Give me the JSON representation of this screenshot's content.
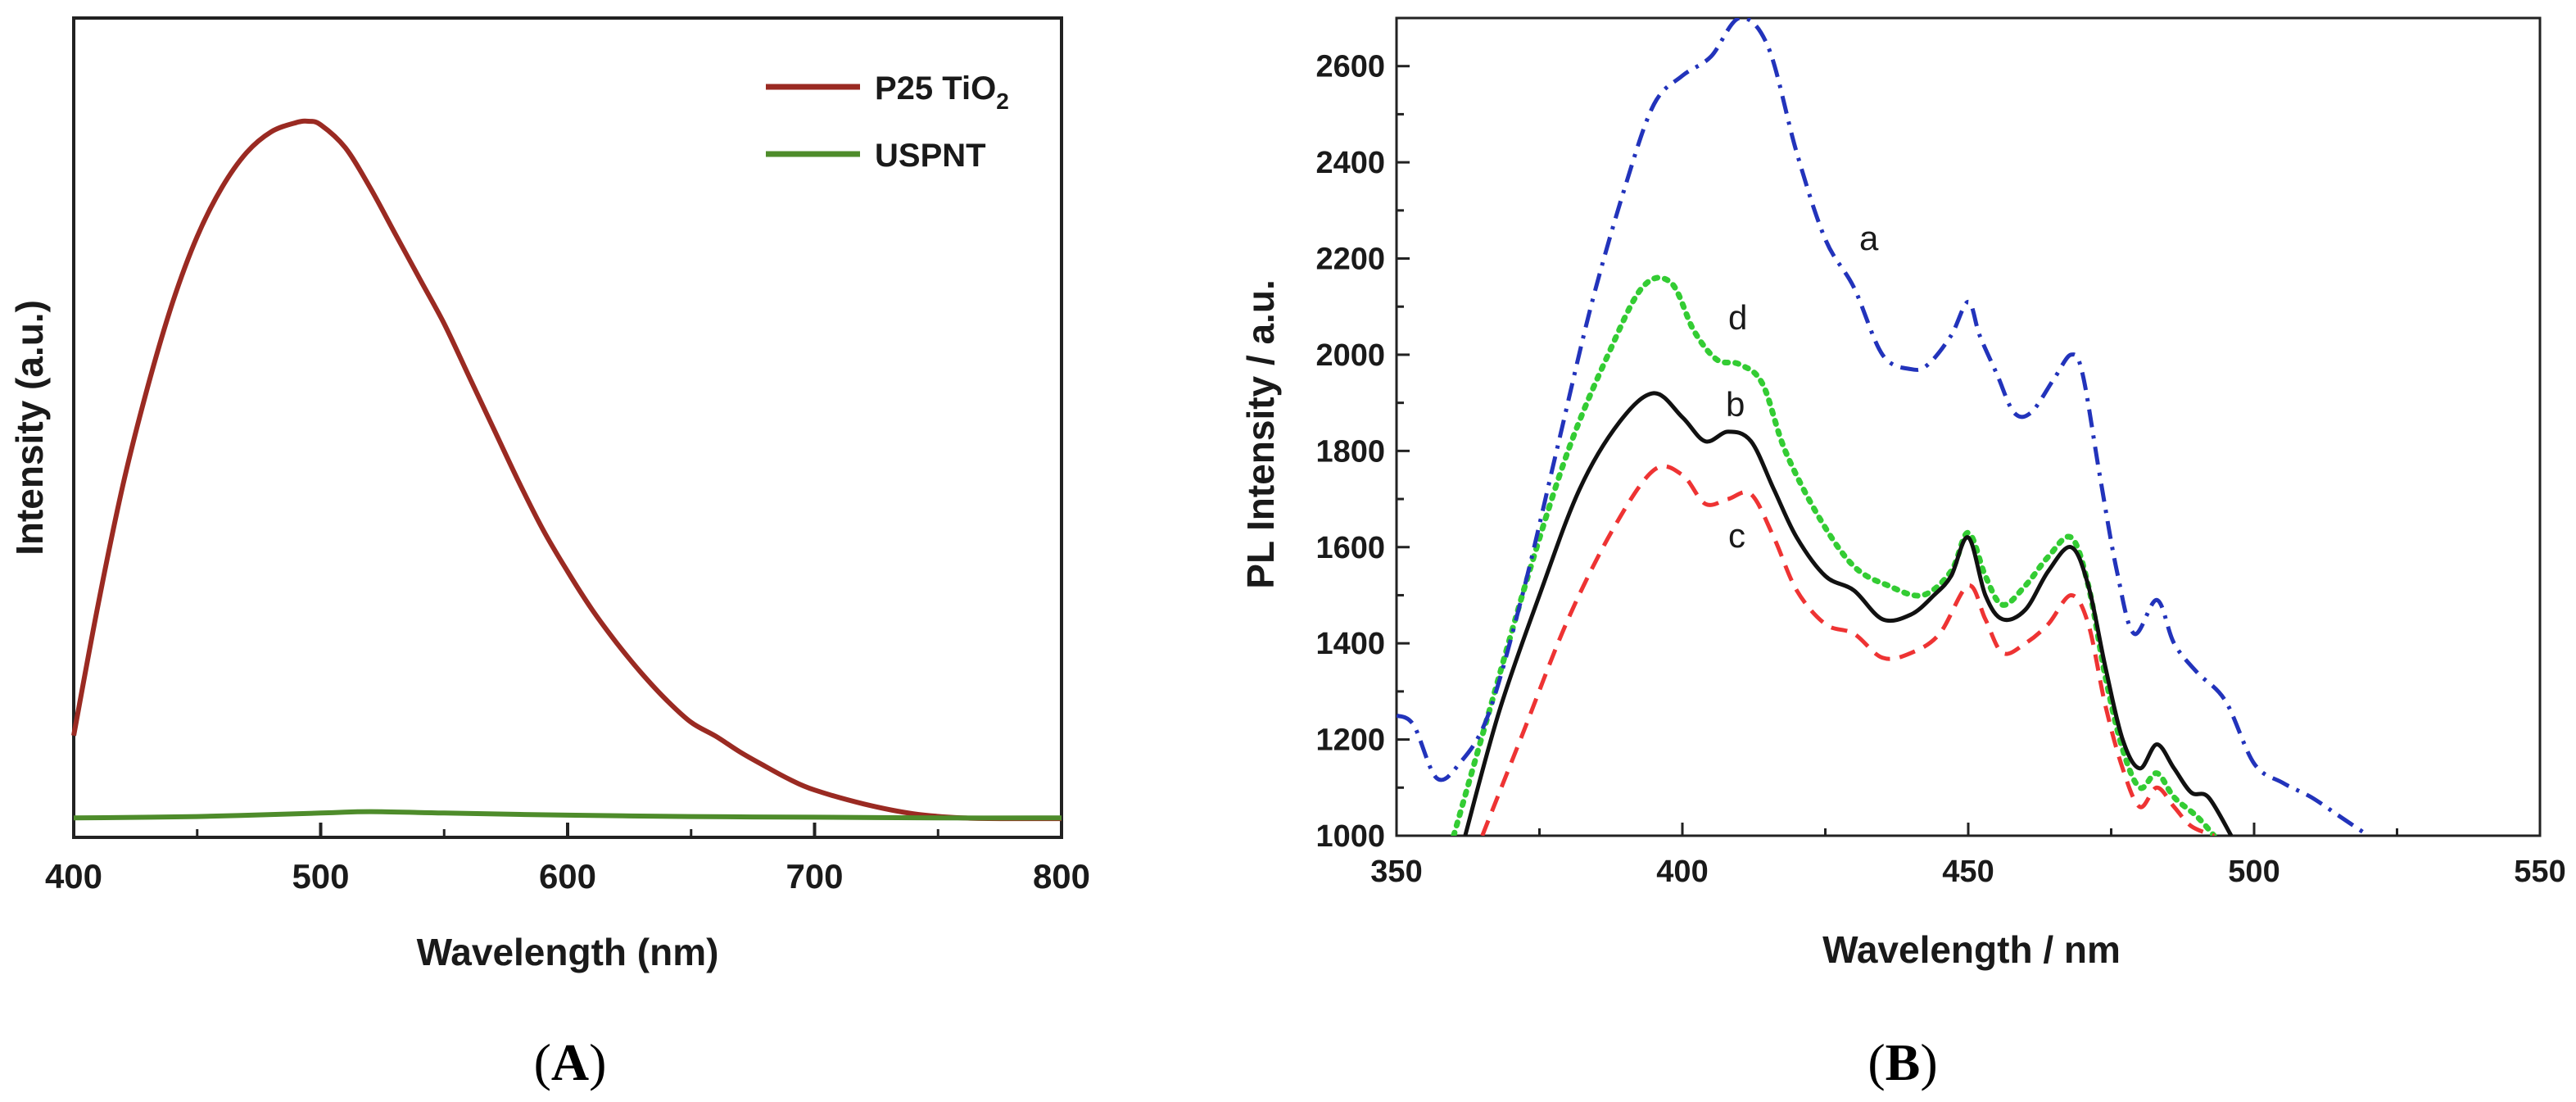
{
  "chart_data": [
    {
      "panel": "A",
      "type": "line",
      "title": "",
      "xlabel": "Wavelength (nm)",
      "ylabel": "Intensity (a.u.)",
      "xlim": [
        400,
        800
      ],
      "ylim": [
        0,
        100
      ],
      "x_ticks": [
        "400",
        "500",
        "600",
        "700",
        "800"
      ],
      "y_ticks": [],
      "legend_position": "top-right",
      "series": [
        {
          "name": "P25 TiO2",
          "legend_main": "P25 TiO",
          "legend_sub": "2",
          "color": "#9a2a22",
          "x": [
            400,
            410,
            420,
            430,
            440,
            450,
            460,
            470,
            480,
            490,
            495,
            500,
            510,
            520,
            530,
            540,
            550,
            560,
            570,
            580,
            590,
            600,
            610,
            620,
            630,
            640,
            650,
            660,
            670,
            680,
            690,
            700,
            720,
            740,
            760,
            780,
            800
          ],
          "y": [
            12,
            31,
            48,
            62,
            74,
            83.5,
            90.5,
            95.5,
            98.5,
            99.8,
            100,
            99.5,
            96.2,
            90.5,
            84,
            77.5,
            71,
            63.5,
            56,
            48.5,
            41.5,
            35.5,
            30,
            25.2,
            20.9,
            17.1,
            13.9,
            11.9,
            9.6,
            7.6,
            5.7,
            4.2,
            2.2,
            0.8,
            0.2,
            0.1,
            0.1
          ]
        },
        {
          "name": "USPNT",
          "legend_main": "USPNT",
          "legend_sub": "",
          "color": "#4e8c2b",
          "x": [
            400,
            450,
            500,
            520,
            550,
            600,
            650,
            700,
            750,
            800
          ],
          "y": [
            0.2,
            0.4,
            0.9,
            1.1,
            0.9,
            0.6,
            0.4,
            0.3,
            0.2,
            0.2
          ]
        }
      ]
    },
    {
      "panel": "B",
      "type": "line",
      "title": "",
      "xlabel": "Wavelength / nm",
      "ylabel": "PL Intensity / a.u.",
      "xlim": [
        350,
        550
      ],
      "ylim": [
        1000,
        2700
      ],
      "x_ticks": [
        "350",
        "400",
        "450",
        "500",
        "550"
      ],
      "y_ticks": [
        "1000",
        "1200",
        "1400",
        "1600",
        "1800",
        "2000",
        "2200",
        "2400",
        "2600"
      ],
      "series": [
        {
          "name": "a",
          "color": "#2233bb",
          "style": "dash-dot",
          "x": [
            350,
            353,
            357,
            361,
            366,
            372,
            378,
            384,
            390,
            395,
            400,
            405,
            410,
            415,
            420,
            425,
            430,
            435,
            440,
            443,
            447,
            450,
            452,
            455,
            458,
            461,
            465,
            468,
            470,
            473,
            476,
            479,
            483,
            486,
            490,
            495,
            500,
            505,
            510,
            515,
            520
          ],
          "y": [
            1250,
            1230,
            1120,
            1150,
            1250,
            1500,
            1800,
            2100,
            2350,
            2520,
            2580,
            2620,
            2700,
            2640,
            2420,
            2240,
            2140,
            2000,
            1970,
            1980,
            2040,
            2110,
            2040,
            1960,
            1880,
            1880,
            1950,
            2000,
            1960,
            1750,
            1550,
            1420,
            1490,
            1400,
            1340,
            1280,
            1150,
            1110,
            1080,
            1040,
            1000
          ]
        },
        {
          "name": "b",
          "color": "#111111",
          "style": "solid",
          "x": [
            362,
            368,
            375,
            382,
            389,
            395,
            400,
            404,
            408,
            412,
            416,
            420,
            425,
            430,
            435,
            440,
            444,
            447,
            450,
            453,
            456,
            460,
            464,
            468,
            471,
            474,
            477,
            480,
            483,
            486,
            489,
            492,
            496
          ],
          "y": [
            1000,
            1260,
            1500,
            1720,
            1860,
            1920,
            1870,
            1820,
            1840,
            1820,
            1720,
            1620,
            1540,
            1510,
            1450,
            1460,
            1500,
            1540,
            1620,
            1500,
            1450,
            1470,
            1550,
            1600,
            1520,
            1350,
            1200,
            1140,
            1190,
            1140,
            1090,
            1080,
            1000
          ]
        },
        {
          "name": "c",
          "color": "#ee3333",
          "style": "dashed",
          "x": [
            365,
            372,
            380,
            388,
            395,
            400,
            404,
            408,
            412,
            416,
            420,
            425,
            430,
            435,
            440,
            445,
            450,
            453,
            456,
            460,
            464,
            468,
            471,
            474,
            477,
            480,
            483,
            486,
            489,
            493
          ],
          "y": [
            1000,
            1210,
            1450,
            1640,
            1760,
            1750,
            1690,
            1700,
            1710,
            1620,
            1510,
            1440,
            1420,
            1370,
            1380,
            1420,
            1520,
            1450,
            1380,
            1400,
            1440,
            1500,
            1440,
            1270,
            1140,
            1060,
            1100,
            1060,
            1020,
            1000
          ]
        },
        {
          "name": "d",
          "color": "#33cc33",
          "style": "dotted",
          "x": [
            360,
            366,
            373,
            380,
            387,
            393,
            398,
            402,
            406,
            410,
            414,
            418,
            424,
            430,
            436,
            442,
            447,
            450,
            453,
            456,
            460,
            464,
            468,
            471,
            474,
            477,
            480,
            483,
            486,
            490,
            493
          ],
          "y": [
            1000,
            1250,
            1540,
            1800,
            2000,
            2140,
            2150,
            2050,
            1990,
            1980,
            1940,
            1800,
            1660,
            1560,
            1520,
            1500,
            1550,
            1630,
            1540,
            1480,
            1520,
            1580,
            1620,
            1520,
            1330,
            1180,
            1100,
            1130,
            1080,
            1040,
            1000
          ]
        }
      ],
      "curve_labels": [
        "a",
        "b",
        "c",
        "d"
      ]
    }
  ],
  "panel_labels": {
    "a_open": "(",
    "a_letter": "A",
    "a_close": ")",
    "b_open": "(",
    "b_letter": "B",
    "b_close": ")"
  }
}
